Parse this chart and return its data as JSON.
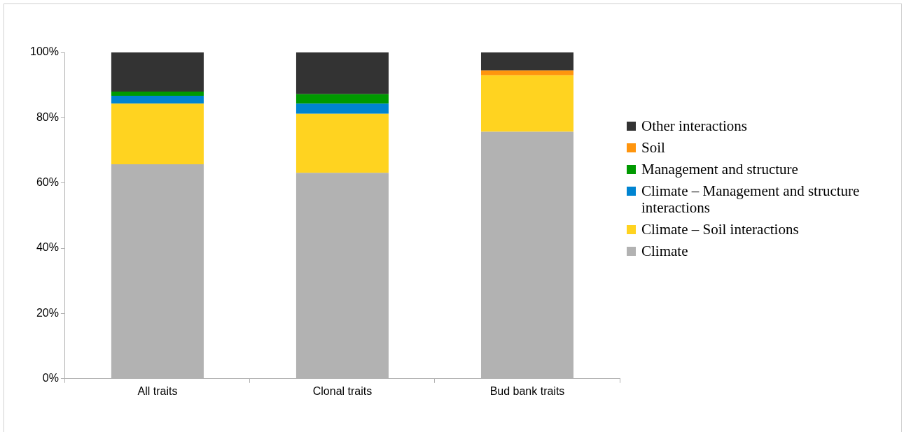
{
  "chart_data": {
    "type": "bar",
    "stacked": true,
    "categories": [
      "All traits",
      "Clonal traits",
      "Bud bank traits"
    ],
    "series": [
      {
        "name": "Climate",
        "color": "#b2b2b2",
        "values": [
          65.7,
          63.1,
          75.7
        ]
      },
      {
        "name": "Climate – Soil interactions",
        "color": "#ffd320",
        "values": [
          18.6,
          18.1,
          17.3
        ]
      },
      {
        "name": "Climate – Management and structure interactions",
        "color": "#0084d1",
        "values": [
          2.4,
          3.1,
          0
        ]
      },
      {
        "name": "Management and structure",
        "color": "#009900",
        "values": [
          1.3,
          2.9,
          0
        ]
      },
      {
        "name": "Soil",
        "color": "#ff950e",
        "values": [
          0,
          0,
          1.5
        ]
      },
      {
        "name": "Other interactions",
        "color": "#333333",
        "values": [
          12.0,
          12.8,
          5.5
        ]
      }
    ],
    "ylim": [
      0,
      100
    ],
    "yticks": [
      {
        "value": 0,
        "label": "0%"
      },
      {
        "value": 20,
        "label": "20%"
      },
      {
        "value": 40,
        "label": "40%"
      },
      {
        "value": 60,
        "label": "60%"
      },
      {
        "value": 80,
        "label": "80%"
      },
      {
        "value": 100,
        "label": "100%"
      }
    ],
    "grid": false,
    "legend": "right"
  }
}
